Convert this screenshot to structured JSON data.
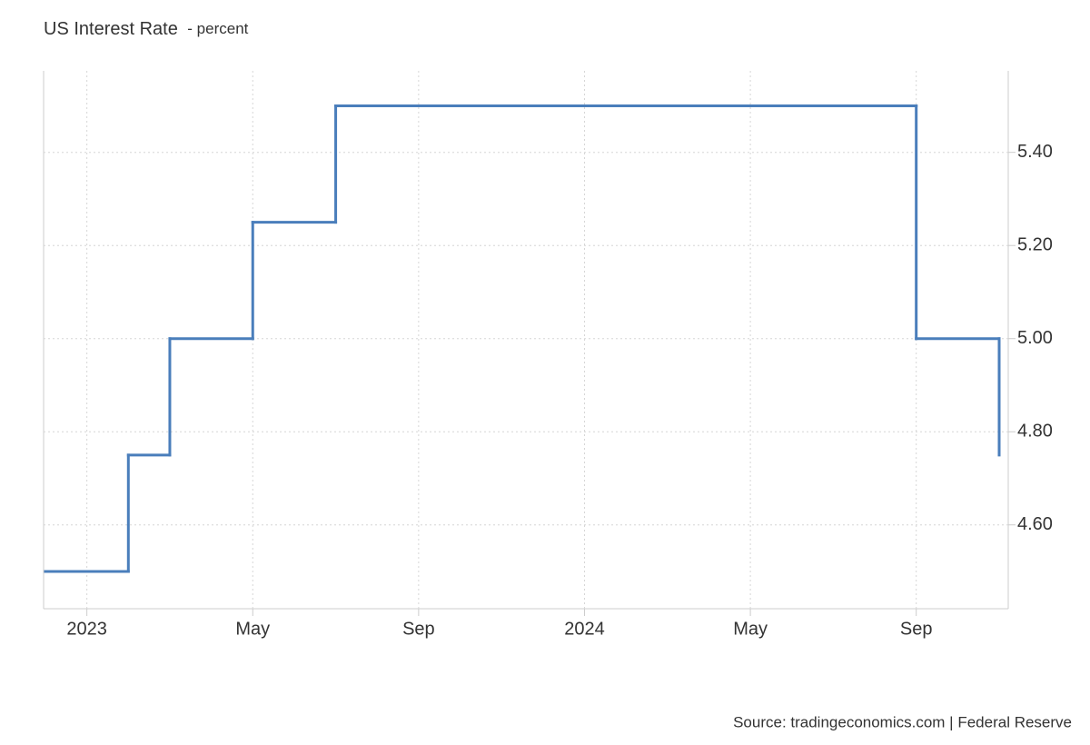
{
  "chart_data": {
    "type": "step-line",
    "title": "US Interest Rate",
    "subtitle": "- percent",
    "source": "Source: tradingeconomics.com | Federal Reserve",
    "x": [
      "2022-12",
      "2023-02",
      "2023-03",
      "2023-05",
      "2023-07",
      "2024-09",
      "2024-11"
    ],
    "series": [
      {
        "name": "US Interest Rate",
        "color": "#4a7ebb",
        "values": [
          4.5,
          4.75,
          5.0,
          5.25,
          5.5,
          5.0,
          4.75
        ]
      }
    ],
    "xlim": [
      "2022-12",
      "2024-11"
    ],
    "xticks": [
      {
        "value": "2023-01",
        "label": "2023"
      },
      {
        "value": "2023-05",
        "label": "May"
      },
      {
        "value": "2023-09",
        "label": "Sep"
      },
      {
        "value": "2024-01",
        "label": "2024"
      },
      {
        "value": "2024-05",
        "label": "May"
      },
      {
        "value": "2024-09",
        "label": "Sep"
      }
    ],
    "ylim": [
      4.42,
      5.575
    ],
    "yticks": [
      {
        "value": 4.6,
        "label": "4.60"
      },
      {
        "value": 4.8,
        "label": "4.80"
      },
      {
        "value": 5.0,
        "label": "5.00"
      },
      {
        "value": 5.2,
        "label": "5.20"
      },
      {
        "value": 5.4,
        "label": "5.40"
      }
    ],
    "grid": true
  }
}
